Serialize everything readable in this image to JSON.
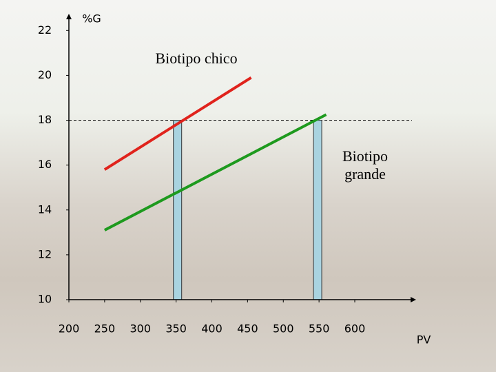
{
  "chart_data": {
    "type": "line",
    "y_label": "%G",
    "x_label": "PV",
    "series": [
      {
        "name": "Biotipo chico",
        "color": "#e0231c",
        "x": [
          250,
          455
        ],
        "values": [
          15.8,
          19.9
        ]
      },
      {
        "name": "Biotipo grande",
        "color": "#1e9a1e",
        "x": [
          250,
          560
        ],
        "values": [
          13.1,
          18.25
        ]
      }
    ],
    "bars": {
      "color": "#a9d3e0",
      "x": [
        352,
        548
      ],
      "values": [
        18,
        18
      ]
    },
    "reference_line": 18,
    "xlim": [
      200,
      680
    ],
    "ylim": [
      10,
      22.5
    ],
    "xticks": [
      200,
      250,
      300,
      350,
      400,
      450,
      500,
      550,
      600
    ],
    "yticks": [
      10,
      12,
      14,
      16,
      18,
      20,
      22
    ]
  }
}
